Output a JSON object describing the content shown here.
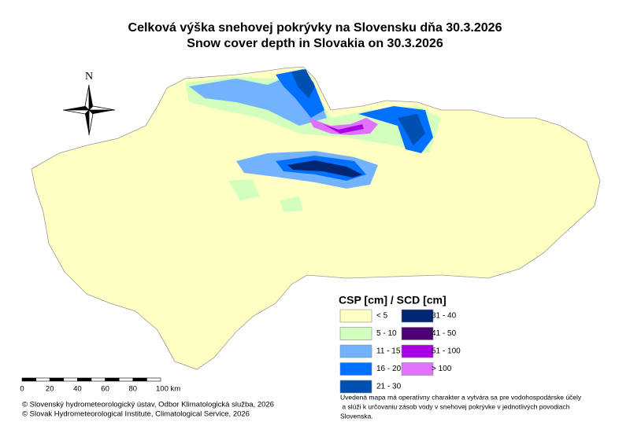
{
  "header": {
    "title_sk": "Celková výška snehovej pokrývky na Slovensku dňa 30.3.2026",
    "title_en": "Snow cover depth in Slovakia on 30.3.2026"
  },
  "north_arrow": {
    "label": "N"
  },
  "legend": {
    "title": "CSP [cm] / SCD [cm]",
    "items": [
      {
        "label": "< 5",
        "color": "#ffffc4"
      },
      {
        "label": "5 - 10",
        "color": "#d2ffbe"
      },
      {
        "label": "11 - 15",
        "color": "#73b2ff"
      },
      {
        "label": "16 - 20",
        "color": "#0070ff"
      },
      {
        "label": "21 - 30",
        "color": "#0050b4"
      },
      {
        "label": "31 - 40",
        "color": "#002673"
      },
      {
        "label": "41 - 50",
        "color": "#4c0073"
      },
      {
        "label": "51 - 100",
        "color": "#a900e6"
      },
      {
        "label": "> 100",
        "color": "#df73ff"
      }
    ]
  },
  "scale_bar": {
    "labels": [
      "0",
      "20",
      "40",
      "60",
      "80",
      "100 km"
    ]
  },
  "credits": [
    "© Slovenský hydrometeorologický ústav, Odbor Klimatologická služba, 2026",
    "© Slovak Hydrometeorological Institute, Climatological Service, 2026"
  ],
  "note": [
    "Uvedená mapa má operatívny charakter a vytvára sa pre vodohospodárske účely",
    " a slúži k určovaniu zásob vody v snehovej pokrývke v jednotlivých povodiach",
    "Slovenska."
  ]
}
